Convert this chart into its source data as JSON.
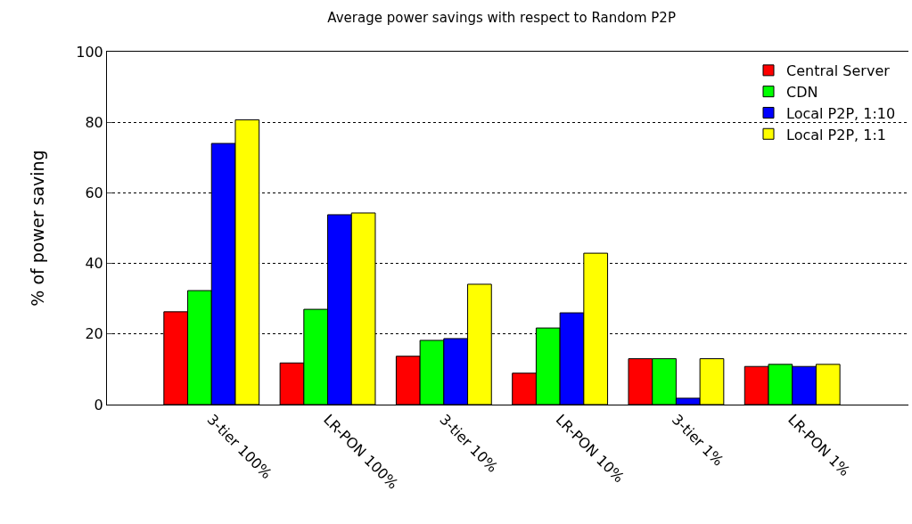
{
  "chart_data": {
    "type": "bar",
    "title": "Average power savings with respect to Random P2P",
    "ylabel": "% of power saving",
    "categories": [
      "3-tier 100%",
      "LR-PON 100%",
      "3-tier 10%",
      "LR-PON 10%",
      "3-tier 1%",
      "LR-PON 1%"
    ],
    "series": [
      {
        "name": "Central Server",
        "color": "#ff0000",
        "values": [
          26.3,
          11.8,
          13.7,
          8.9,
          13.0,
          10.8
        ]
      },
      {
        "name": "CDN",
        "color": "#00ff00",
        "values": [
          32.3,
          27.0,
          18.2,
          21.7,
          13.0,
          11.4
        ]
      },
      {
        "name": "Local P2P, 1:10",
        "color": "#0000ff",
        "values": [
          74.0,
          53.8,
          18.7,
          26.0,
          1.8,
          10.8
        ]
      },
      {
        "name": "Local P2P, 1:1",
        "color": "#ffff00",
        "values": [
          80.7,
          54.3,
          34.1,
          42.9,
          13.0,
          11.4
        ]
      }
    ],
    "ylim": [
      0,
      100
    ],
    "yticks": [
      0,
      20,
      40,
      60,
      80,
      100
    ],
    "grid": "y",
    "legend": "top right"
  }
}
